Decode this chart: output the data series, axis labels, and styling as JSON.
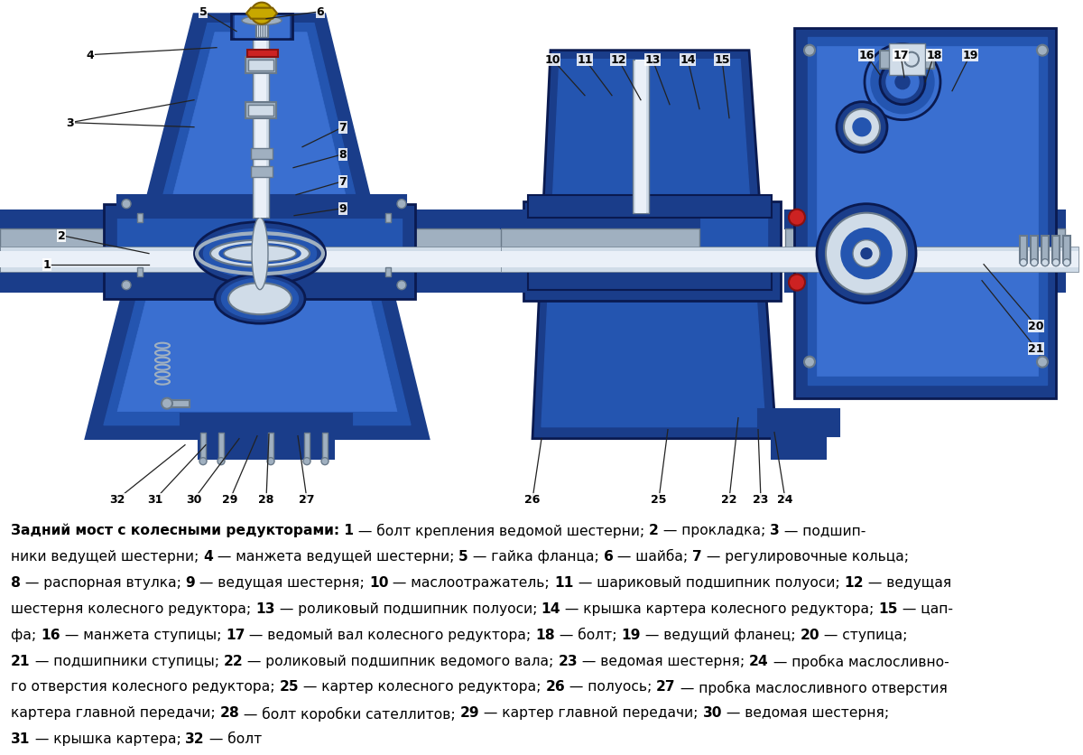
{
  "bg_color": "#ffffff",
  "fig_w": 12.0,
  "fig_h": 8.37,
  "dpi": 100,
  "caption_lines": [
    [
      [
        "Задний мост с колесными редукторами:",
        true
      ],
      [
        " 1",
        true
      ],
      [
        " — болт крепления ведомой шестерни; ",
        false
      ],
      [
        "2",
        true
      ],
      [
        " — прокладка; ",
        false
      ],
      [
        "3",
        true
      ],
      [
        " — подшип-",
        false
      ]
    ],
    [
      [
        "ники ведущей шестерни; ",
        false
      ],
      [
        "4",
        true
      ],
      [
        " — манжета ведущей шестерни; ",
        false
      ],
      [
        "5",
        true
      ],
      [
        " — гайка фланца; ",
        false
      ],
      [
        "6",
        true
      ],
      [
        " — шайба; ",
        false
      ],
      [
        "7",
        true
      ],
      [
        " — регулировочные кольца;",
        false
      ]
    ],
    [
      [
        "8",
        true
      ],
      [
        " — распорная втулка; ",
        false
      ],
      [
        "9",
        true
      ],
      [
        " — ведущая шестерня; ",
        false
      ],
      [
        "10",
        true
      ],
      [
        " — маслоотражатель; ",
        false
      ],
      [
        "11",
        true
      ],
      [
        " — шариковый подшипник полуоси; ",
        false
      ],
      [
        "12",
        true
      ],
      [
        " — ведущая",
        false
      ]
    ],
    [
      [
        "шестерня колесного редуктора; ",
        false
      ],
      [
        "13",
        true
      ],
      [
        " — роликовый подшипник полуоси; ",
        false
      ],
      [
        "14",
        true
      ],
      [
        " — крышка картера колесного редуктора; ",
        false
      ],
      [
        "15",
        true
      ],
      [
        " — цап-",
        false
      ]
    ],
    [
      [
        "фа; ",
        false
      ],
      [
        "16",
        true
      ],
      [
        " — манжета ступицы; ",
        false
      ],
      [
        "17",
        true
      ],
      [
        " — ведомый вал колесного редуктора; ",
        false
      ],
      [
        "18",
        true
      ],
      [
        " — болт; ",
        false
      ],
      [
        "19",
        true
      ],
      [
        " — ведущий фланец; ",
        false
      ],
      [
        "20",
        true
      ],
      [
        " — ступица;",
        false
      ]
    ],
    [
      [
        "21",
        true
      ],
      [
        " — подшипники ступицы; ",
        false
      ],
      [
        "22",
        true
      ],
      [
        " — роликовый подшипник ведомого вала; ",
        false
      ],
      [
        "23",
        true
      ],
      [
        " — ведомая шестерня; ",
        false
      ],
      [
        "24",
        true
      ],
      [
        " — пробка маслосливно-",
        false
      ]
    ],
    [
      [
        "го отверстия колесного редуктора; ",
        false
      ],
      [
        "25",
        true
      ],
      [
        " — картер колесного редуктора; ",
        false
      ],
      [
        "26",
        true
      ],
      [
        " — полуось; ",
        false
      ],
      [
        "27",
        true
      ],
      [
        " — пробка маслосливного отверстия",
        false
      ]
    ],
    [
      [
        "картера главной передачи; ",
        false
      ],
      [
        "28",
        true
      ],
      [
        " — болт коробки сателлитов; ",
        false
      ],
      [
        "29",
        true
      ],
      [
        " — картер главной передачи; ",
        false
      ],
      [
        "30",
        true
      ],
      [
        " — ведомая шестерня;",
        false
      ]
    ],
    [
      [
        "31",
        true
      ],
      [
        " — крышка картера; ",
        false
      ],
      [
        "32",
        true
      ],
      [
        " — болт",
        false
      ]
    ]
  ],
  "dark_blue": "#1a3d8a",
  "mid_blue": "#2455b0",
  "light_blue": "#3a6fd0",
  "bright_blue": "#4a85e8",
  "silver_dark": "#6a7a8a",
  "silver_mid": "#a0b0c0",
  "silver_light": "#d0dce8",
  "silver_bright": "#eaf0f8",
  "gold": "#c8a800",
  "gold_dark": "#806000",
  "red_seal": "#cc2222",
  "olive": "#8a7a20"
}
